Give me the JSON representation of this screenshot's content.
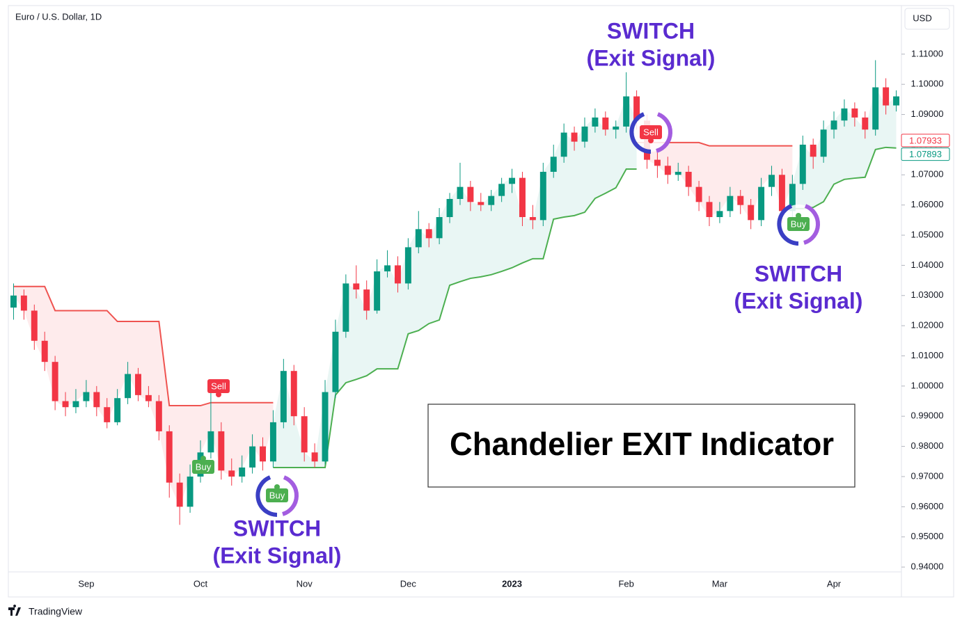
{
  "chart_data": {
    "type": "candlestick",
    "title": "Euro / U.S. Dollar, 1D",
    "currency": "USD",
    "categories": [
      null,
      null,
      null,
      null,
      null,
      null,
      null,
      "Sep",
      null,
      null,
      null,
      null,
      null,
      null,
      null,
      null,
      null,
      null,
      "Oct",
      null,
      null,
      null,
      null,
      null,
      null,
      null,
      null,
      null,
      "Nov",
      null,
      null,
      null,
      null,
      null,
      null,
      null,
      null,
      null,
      "Dec",
      null,
      null,
      null,
      null,
      null,
      null,
      null,
      null,
      null,
      "2023",
      null,
      null,
      null,
      null,
      null,
      null,
      null,
      null,
      null,
      null,
      "Feb",
      null,
      null,
      null,
      null,
      null,
      null,
      null,
      null,
      "Mar",
      null,
      null,
      null,
      null,
      null,
      null,
      null,
      null,
      null,
      null,
      "Apr",
      null,
      null,
      null,
      null,
      null,
      null
    ],
    "open": [
      1.026,
      1.03,
      1.025,
      1.015,
      1.008,
      0.995,
      0.993,
      0.995,
      0.998,
      0.993,
      0.988,
      0.996,
      1.004,
      0.997,
      0.995,
      0.985,
      0.968,
      0.96,
      0.97,
      0.978,
      0.985,
      0.972,
      0.97,
      0.973,
      0.98,
      0.975,
      0.988,
      1.005,
      0.99,
      0.978,
      0.975,
      0.998,
      1.018,
      1.034,
      1.032,
      1.025,
      1.038,
      1.04,
      1.034,
      1.046,
      1.052,
      1.049,
      1.056,
      1.062,
      1.066,
      1.061,
      1.06,
      1.063,
      1.067,
      1.069,
      1.056,
      1.055,
      1.071,
      1.076,
      1.084,
      1.081,
      1.086,
      1.089,
      1.085,
      1.086,
      1.096,
      1.088,
      1.075,
      1.073,
      1.07,
      1.071,
      1.066,
      1.061,
      1.056,
      1.058,
      1.063,
      1.06,
      1.055,
      1.066,
      1.07,
      1.058,
      1.067,
      1.08,
      1.076,
      1.085,
      1.088,
      1.092,
      1.089,
      1.085,
      1.099,
      1.093
    ],
    "high": [
      1.034,
      1.032,
      1.027,
      1.018,
      1.01,
      0.998,
      0.999,
      1.002,
      1.0,
      0.996,
      0.999,
      1.008,
      1.006,
      1.0,
      0.997,
      0.987,
      0.971,
      0.974,
      0.982,
      0.999,
      0.988,
      0.976,
      0.977,
      0.984,
      0.983,
      0.992,
      1.009,
      1.007,
      0.993,
      0.981,
      1.002,
      1.022,
      1.037,
      1.04,
      1.035,
      1.042,
      1.045,
      1.043,
      1.049,
      1.058,
      1.054,
      1.059,
      1.064,
      1.074,
      1.068,
      1.064,
      1.065,
      1.069,
      1.072,
      1.071,
      1.06,
      1.074,
      1.08,
      1.087,
      1.086,
      1.089,
      1.092,
      1.091,
      1.088,
      1.104,
      1.098,
      1.09,
      1.078,
      1.076,
      1.074,
      1.073,
      1.068,
      1.063,
      1.061,
      1.066,
      1.065,
      1.062,
      1.069,
      1.073,
      1.072,
      1.07,
      1.083,
      1.082,
      1.088,
      1.091,
      1.095,
      1.094,
      1.091,
      1.108,
      1.102,
      1.098
    ],
    "low": [
      1.022,
      1.022,
      1.012,
      1.005,
      0.992,
      0.99,
      0.991,
      0.993,
      0.99,
      0.986,
      0.987,
      0.994,
      0.995,
      0.993,
      0.982,
      0.963,
      0.954,
      0.958,
      0.968,
      0.976,
      0.969,
      0.967,
      0.968,
      0.971,
      0.972,
      0.973,
      0.986,
      0.987,
      0.975,
      0.973,
      0.974,
      0.996,
      1.016,
      1.029,
      1.022,
      1.024,
      1.036,
      1.031,
      1.032,
      1.044,
      1.046,
      1.047,
      1.054,
      1.06,
      1.058,
      1.058,
      1.058,
      1.061,
      1.064,
      1.053,
      1.052,
      1.053,
      1.069,
      1.074,
      1.078,
      1.079,
      1.084,
      1.083,
      1.082,
      1.084,
      1.085,
      1.072,
      1.069,
      1.067,
      1.068,
      1.063,
      1.058,
      1.053,
      1.054,
      1.056,
      1.057,
      1.052,
      1.053,
      1.063,
      1.054,
      1.056,
      1.065,
      1.072,
      1.074,
      1.082,
      1.086,
      1.086,
      1.082,
      1.083,
      1.09,
      1.091
    ],
    "close": [
      1.03,
      1.025,
      1.015,
      1.008,
      0.995,
      0.993,
      0.995,
      0.998,
      0.993,
      0.988,
      0.996,
      1.004,
      0.997,
      0.995,
      0.985,
      0.968,
      0.96,
      0.97,
      0.978,
      0.985,
      0.972,
      0.97,
      0.973,
      0.98,
      0.975,
      0.988,
      1.005,
      0.99,
      0.978,
      0.975,
      0.998,
      1.018,
      1.034,
      1.032,
      1.025,
      1.038,
      1.04,
      1.034,
      1.046,
      1.052,
      1.049,
      1.056,
      1.062,
      1.066,
      1.061,
      1.06,
      1.063,
      1.067,
      1.069,
      1.056,
      1.055,
      1.071,
      1.076,
      1.084,
      1.081,
      1.086,
      1.089,
      1.085,
      1.086,
      1.096,
      1.088,
      1.075,
      1.073,
      1.07,
      1.071,
      1.066,
      1.061,
      1.056,
      1.058,
      1.063,
      1.06,
      1.055,
      1.066,
      1.07,
      1.058,
      1.067,
      1.08,
      1.076,
      1.085,
      1.088,
      1.092,
      1.089,
      1.085,
      1.099,
      1.093,
      1.096
    ],
    "up_color": "#089981",
    "down_color": "#f23645",
    "short_stop": {
      "color": "#ef5350",
      "fill": "rgba(242,54,69,0.10)",
      "values": [
        1.033,
        1.033,
        1.033,
        1.033,
        1.025,
        1.025,
        1.025,
        1.025,
        1.025,
        1.025,
        1.0214,
        1.0214,
        1.0214,
        1.0214,
        1.0214,
        0.9935,
        0.9935,
        0.9935,
        0.9935,
        0.9945,
        0.9945,
        0.9945,
        0.9945,
        0.9945,
        0.9945,
        0.9945,
        null,
        null,
        null,
        null,
        null,
        null,
        null,
        null,
        null,
        null,
        null,
        null,
        null,
        null,
        null,
        null,
        null,
        null,
        null,
        null,
        null,
        null,
        null,
        null,
        null,
        null,
        null,
        null,
        null,
        null,
        null,
        null,
        null,
        null,
        1.0807,
        1.0807,
        1.0807,
        1.0807,
        1.0807,
        1.0807,
        1.0807,
        1.0796,
        1.0796,
        1.0796,
        1.0796,
        1.0796,
        1.0796,
        1.0796,
        1.0796,
        1.0796,
        null,
        null,
        null,
        null,
        null,
        null,
        null,
        null,
        null,
        null
      ]
    },
    "long_stop": {
      "color": "#4caf50",
      "fill": "rgba(8,153,129,0.09)",
      "values": [
        null,
        null,
        null,
        null,
        null,
        null,
        null,
        null,
        null,
        null,
        null,
        null,
        null,
        null,
        null,
        null,
        null,
        null,
        null,
        null,
        null,
        null,
        null,
        null,
        null,
        0.973,
        0.973,
        0.973,
        0.973,
        0.973,
        0.973,
        0.997,
        1.0011,
        1.0022,
        1.0034,
        1.0057,
        1.0057,
        1.0057,
        1.0173,
        1.0184,
        1.0207,
        1.0219,
        1.0334,
        1.0346,
        1.0357,
        1.0362,
        1.0369,
        1.038,
        1.0392,
        1.0408,
        1.0422,
        1.0422,
        1.0553,
        1.056,
        1.0565,
        1.0576,
        1.0622,
        1.0639,
        1.0657,
        1.0719,
        1.0719,
        null,
        null,
        null,
        null,
        null,
        null,
        null,
        null,
        null,
        null,
        null,
        null,
        null,
        null,
        1.0588,
        1.0588,
        1.0592,
        1.0611,
        1.0669,
        1.0685,
        1.0689,
        1.0692,
        1.0784,
        1.0791,
        1.0789
      ]
    },
    "ylim": [
      0.9301,
      1.1261
    ],
    "yticks": [
      {
        "value": 0.94,
        "label": "0.94000"
      },
      {
        "value": 0.95,
        "label": "0.95000"
      },
      {
        "value": 0.96,
        "label": "0.96000"
      },
      {
        "value": 0.97,
        "label": "0.97000"
      },
      {
        "value": 0.98,
        "label": "0.98000"
      },
      {
        "value": 0.99,
        "label": "0.99000"
      },
      {
        "value": 1.0,
        "label": "1.00000"
      },
      {
        "value": 1.01,
        "label": "1.01000"
      },
      {
        "value": 1.02,
        "label": "1.02000"
      },
      {
        "value": 1.03,
        "label": "1.03000"
      },
      {
        "value": 1.04,
        "label": "1.04000"
      },
      {
        "value": 1.05,
        "label": "1.05000"
      },
      {
        "value": 1.06,
        "label": "1.06000"
      },
      {
        "value": 1.07,
        "label": "1.07000"
      },
      {
        "value": 1.08,
        "label": "1.08000"
      },
      {
        "value": 1.09,
        "label": "1.09000"
      },
      {
        "value": 1.1,
        "label": "1.10000"
      },
      {
        "value": 1.11,
        "label": "1.11000"
      }
    ],
    "price_labels": [
      {
        "value": 1.07933,
        "color": "#f23645"
      },
      {
        "value": 1.07893,
        "color": "#089981"
      }
    ],
    "signals": [
      "Buy",
      "Sell",
      "Buy",
      "Sell",
      "Buy"
    ],
    "annotations": [
      [
        "SWITCH",
        "(Exit Signal)"
      ],
      [
        "SWITCH",
        "(Exit Signal)"
      ],
      [
        "SWITCH",
        "(Exit Signal)"
      ]
    ],
    "indicator_label": "Chandelier EXIT Indicator"
  },
  "footer": "TradingView"
}
